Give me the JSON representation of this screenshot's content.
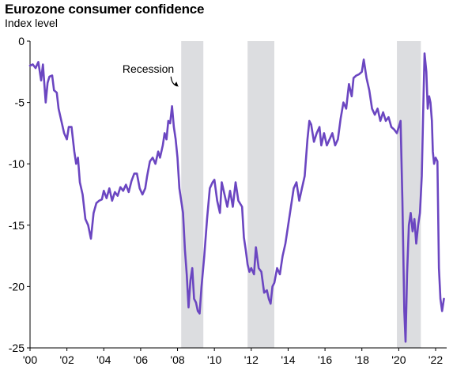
{
  "chart_data": {
    "type": "line",
    "title": "Eurozone consumer confidence",
    "subtitle": "Index level",
    "xlabel": "",
    "ylabel": "",
    "xlim": [
      2000,
      2022.6
    ],
    "ylim": [
      -25,
      0
    ],
    "yticks": [
      0,
      -5,
      -10,
      -15,
      -20,
      -25
    ],
    "xticks": [
      {
        "value": 2000,
        "label": "'00"
      },
      {
        "value": 2002,
        "label": "'02"
      },
      {
        "value": 2004,
        "label": "'04"
      },
      {
        "value": 2006,
        "label": "'06"
      },
      {
        "value": 2008,
        "label": "'08"
      },
      {
        "value": 2010,
        "label": "'10"
      },
      {
        "value": 2012,
        "label": "'12"
      },
      {
        "value": 2014,
        "label": "'14"
      },
      {
        "value": 2016,
        "label": "'16"
      },
      {
        "value": 2018,
        "label": "'18"
      },
      {
        "value": 2020,
        "label": "'20"
      },
      {
        "value": 2022,
        "label": "'22"
      }
    ],
    "grid": false,
    "line_color": "#6b46c1",
    "shading_color": "#dcdde0",
    "recessions": [
      {
        "start": 2008.2,
        "end": 2009.4
      },
      {
        "start": 2011.8,
        "end": 2013.25
      },
      {
        "start": 2019.9,
        "end": 2021.2
      }
    ],
    "annotation": {
      "text": "Recession",
      "x": 2008.2,
      "y": -2.5
    },
    "series": [
      {
        "values": [
          [
            2000.0,
            -2.0
          ],
          [
            2000.15,
            -1.9
          ],
          [
            2000.3,
            -2.2
          ],
          [
            2000.45,
            -1.7
          ],
          [
            2000.6,
            -3.2
          ],
          [
            2000.7,
            -1.9
          ],
          [
            2000.85,
            -5.0
          ],
          [
            2000.95,
            -3.4
          ],
          [
            2001.05,
            -2.9
          ],
          [
            2001.2,
            -2.8
          ],
          [
            2001.3,
            -4.0
          ],
          [
            2001.45,
            -4.2
          ],
          [
            2001.55,
            -5.5
          ],
          [
            2001.7,
            -6.5
          ],
          [
            2001.85,
            -7.5
          ],
          [
            2002.0,
            -8.0
          ],
          [
            2002.1,
            -7.0
          ],
          [
            2002.25,
            -7.0
          ],
          [
            2002.4,
            -9.0
          ],
          [
            2002.5,
            -10.0
          ],
          [
            2002.6,
            -9.5
          ],
          [
            2002.7,
            -11.5
          ],
          [
            2002.85,
            -12.5
          ],
          [
            2003.0,
            -14.5
          ],
          [
            2003.15,
            -15.0
          ],
          [
            2003.3,
            -16.1
          ],
          [
            2003.45,
            -14.0
          ],
          [
            2003.6,
            -13.2
          ],
          [
            2003.75,
            -13.0
          ],
          [
            2003.9,
            -12.9
          ],
          [
            2004.0,
            -12.2
          ],
          [
            2004.15,
            -12.8
          ],
          [
            2004.3,
            -12.0
          ],
          [
            2004.45,
            -13.0
          ],
          [
            2004.6,
            -12.3
          ],
          [
            2004.75,
            -12.6
          ],
          [
            2004.9,
            -11.9
          ],
          [
            2005.05,
            -12.2
          ],
          [
            2005.2,
            -11.7
          ],
          [
            2005.35,
            -12.3
          ],
          [
            2005.5,
            -11.4
          ],
          [
            2005.65,
            -10.8
          ],
          [
            2005.8,
            -10.8
          ],
          [
            2005.95,
            -12.0
          ],
          [
            2006.1,
            -12.5
          ],
          [
            2006.25,
            -12.0
          ],
          [
            2006.35,
            -11.0
          ],
          [
            2006.5,
            -9.8
          ],
          [
            2006.65,
            -9.5
          ],
          [
            2006.8,
            -10.0
          ],
          [
            2006.95,
            -9.0
          ],
          [
            2007.05,
            -9.5
          ],
          [
            2007.2,
            -8.5
          ],
          [
            2007.3,
            -7.5
          ],
          [
            2007.4,
            -8.0
          ],
          [
            2007.5,
            -6.5
          ],
          [
            2007.6,
            -6.7
          ],
          [
            2007.7,
            -5.3
          ],
          [
            2007.8,
            -7.0
          ],
          [
            2007.9,
            -8.0
          ],
          [
            2008.0,
            -9.5
          ],
          [
            2008.1,
            -12.0
          ],
          [
            2008.2,
            -13.0
          ],
          [
            2008.3,
            -14.0
          ],
          [
            2008.4,
            -17.0
          ],
          [
            2008.5,
            -19.0
          ],
          [
            2008.6,
            -21.7
          ],
          [
            2008.7,
            -19.5
          ],
          [
            2008.8,
            -18.5
          ],
          [
            2008.9,
            -21.0
          ],
          [
            2009.0,
            -21.3
          ],
          [
            2009.1,
            -22.0
          ],
          [
            2009.2,
            -22.2
          ],
          [
            2009.3,
            -20.0
          ],
          [
            2009.45,
            -17.5
          ],
          [
            2009.6,
            -14.5
          ],
          [
            2009.75,
            -12.0
          ],
          [
            2009.9,
            -11.5
          ],
          [
            2010.0,
            -11.3
          ],
          [
            2010.15,
            -13.0
          ],
          [
            2010.3,
            -14.0
          ],
          [
            2010.4,
            -11.5
          ],
          [
            2010.55,
            -12.5
          ],
          [
            2010.7,
            -13.5
          ],
          [
            2010.85,
            -12.2
          ],
          [
            2011.0,
            -13.5
          ],
          [
            2011.15,
            -11.5
          ],
          [
            2011.3,
            -13.0
          ],
          [
            2011.5,
            -13.5
          ],
          [
            2011.6,
            -16.0
          ],
          [
            2011.7,
            -17.0
          ],
          [
            2011.8,
            -18.2
          ],
          [
            2011.9,
            -18.8
          ],
          [
            2012.0,
            -18.5
          ],
          [
            2012.15,
            -19.0
          ],
          [
            2012.25,
            -16.8
          ],
          [
            2012.4,
            -18.5
          ],
          [
            2012.55,
            -18.8
          ],
          [
            2012.7,
            -20.5
          ],
          [
            2012.85,
            -20.3
          ],
          [
            2012.95,
            -21.0
          ],
          [
            2013.05,
            -21.4
          ],
          [
            2013.15,
            -20.0
          ],
          [
            2013.25,
            -19.7
          ],
          [
            2013.4,
            -18.5
          ],
          [
            2013.55,
            -19.0
          ],
          [
            2013.7,
            -17.5
          ],
          [
            2013.85,
            -16.5
          ],
          [
            2014.0,
            -15.0
          ],
          [
            2014.15,
            -13.5
          ],
          [
            2014.3,
            -12.0
          ],
          [
            2014.45,
            -11.5
          ],
          [
            2014.6,
            -13.0
          ],
          [
            2014.75,
            -12.0
          ],
          [
            2014.9,
            -11.0
          ],
          [
            2015.05,
            -8.0
          ],
          [
            2015.15,
            -6.5
          ],
          [
            2015.25,
            -6.8
          ],
          [
            2015.4,
            -8.2
          ],
          [
            2015.55,
            -7.5
          ],
          [
            2015.7,
            -7.0
          ],
          [
            2015.8,
            -8.5
          ],
          [
            2015.95,
            -7.5
          ],
          [
            2016.1,
            -8.5
          ],
          [
            2016.25,
            -8.0
          ],
          [
            2016.4,
            -7.5
          ],
          [
            2016.55,
            -8.5
          ],
          [
            2016.7,
            -8.0
          ],
          [
            2016.85,
            -6.3
          ],
          [
            2017.0,
            -5.0
          ],
          [
            2017.15,
            -5.5
          ],
          [
            2017.3,
            -3.5
          ],
          [
            2017.45,
            -4.5
          ],
          [
            2017.55,
            -3.0
          ],
          [
            2017.7,
            -2.8
          ],
          [
            2017.85,
            -2.7
          ],
          [
            2018.0,
            -2.5
          ],
          [
            2018.1,
            -1.5
          ],
          [
            2018.25,
            -3.0
          ],
          [
            2018.4,
            -4.0
          ],
          [
            2018.55,
            -5.5
          ],
          [
            2018.7,
            -6.0
          ],
          [
            2018.85,
            -5.5
          ],
          [
            2019.0,
            -6.5
          ],
          [
            2019.15,
            -5.8
          ],
          [
            2019.3,
            -6.5
          ],
          [
            2019.45,
            -6.2
          ],
          [
            2019.6,
            -7.0
          ],
          [
            2019.75,
            -7.2
          ],
          [
            2019.9,
            -7.5
          ],
          [
            2020.0,
            -7.0
          ],
          [
            2020.1,
            -6.5
          ],
          [
            2020.2,
            -13.0
          ],
          [
            2020.3,
            -22.0
          ],
          [
            2020.37,
            -24.5
          ],
          [
            2020.45,
            -19.0
          ],
          [
            2020.55,
            -15.0
          ],
          [
            2020.65,
            -14.0
          ],
          [
            2020.75,
            -15.5
          ],
          [
            2020.85,
            -14.5
          ],
          [
            2020.95,
            -16.5
          ],
          [
            2021.05,
            -15.0
          ],
          [
            2021.15,
            -14.0
          ],
          [
            2021.25,
            -11.0
          ],
          [
            2021.32,
            -6.0
          ],
          [
            2021.4,
            -1.0
          ],
          [
            2021.5,
            -2.5
          ],
          [
            2021.57,
            -5.5
          ],
          [
            2021.65,
            -4.5
          ],
          [
            2021.72,
            -5.0
          ],
          [
            2021.8,
            -6.5
          ],
          [
            2021.85,
            -9.0
          ],
          [
            2021.92,
            -10.0
          ],
          [
            2022.0,
            -9.5
          ],
          [
            2022.1,
            -9.8
          ],
          [
            2022.18,
            -18.5
          ],
          [
            2022.26,
            -21.0
          ],
          [
            2022.35,
            -22.0
          ],
          [
            2022.45,
            -21.0
          ]
        ]
      }
    ]
  }
}
